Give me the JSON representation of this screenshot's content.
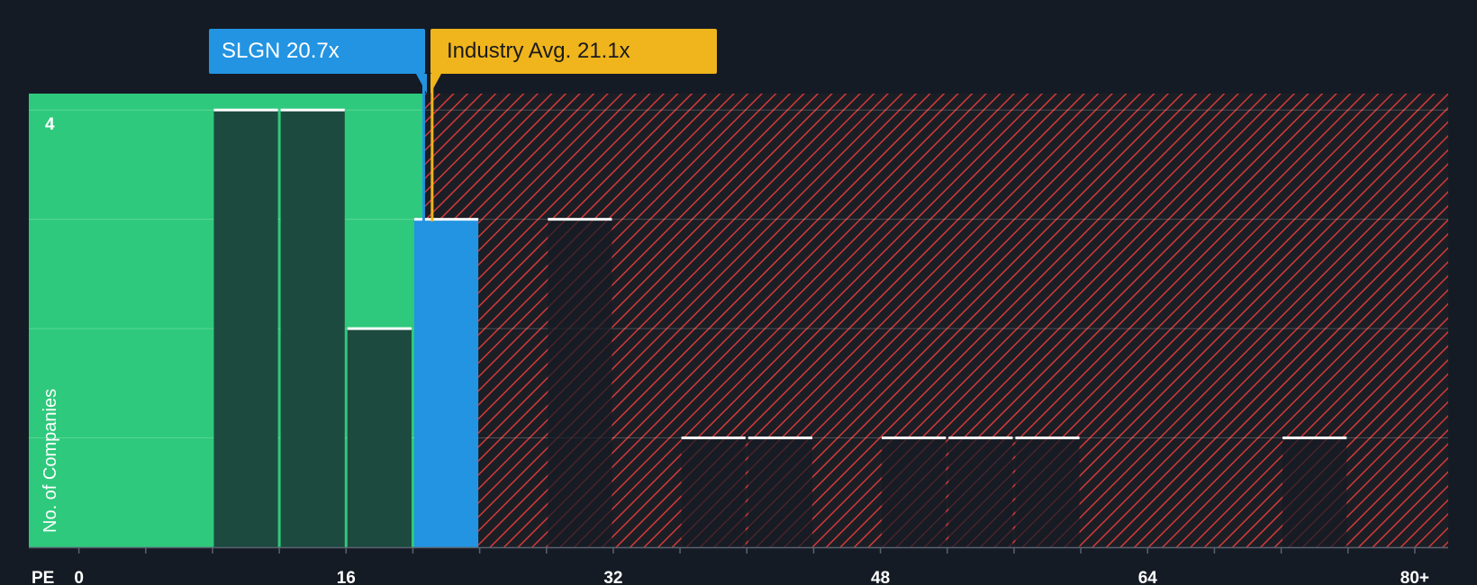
{
  "chart_data": {
    "type": "bar",
    "title": "",
    "xlabel": "PE",
    "ylabel": "No. of Companies",
    "x_axis_prefix": "PE",
    "x_ticks": [
      {
        "value": 0,
        "label": "0"
      },
      {
        "value": 16,
        "label": "16"
      },
      {
        "value": 32,
        "label": "32"
      },
      {
        "value": 48,
        "label": "48"
      },
      {
        "value": 64,
        "label": "64"
      },
      {
        "value": 80,
        "label": "80+"
      }
    ],
    "xlim": [
      -3,
      82
    ],
    "ylim": [
      0,
      4.15
    ],
    "y_ticks": [
      {
        "value": 4,
        "label": "4"
      }
    ],
    "y_gridlines": [
      1,
      2,
      3,
      4
    ],
    "bars": [
      {
        "start": 8,
        "end": 12,
        "value": 4,
        "highlight": false
      },
      {
        "start": 12,
        "end": 16,
        "value": 4,
        "highlight": false
      },
      {
        "start": 16,
        "end": 20,
        "value": 2,
        "highlight": false
      },
      {
        "start": 20,
        "end": 24,
        "value": 3,
        "highlight": true
      },
      {
        "start": 28,
        "end": 32,
        "value": 3,
        "highlight": false
      },
      {
        "start": 36,
        "end": 40,
        "value": 1,
        "highlight": false
      },
      {
        "start": 40,
        "end": 44,
        "value": 1,
        "highlight": false
      },
      {
        "start": 48,
        "end": 52,
        "value": 1,
        "highlight": false
      },
      {
        "start": 52,
        "end": 56,
        "value": 1,
        "highlight": false
      },
      {
        "start": 56,
        "end": 60,
        "value": 1,
        "highlight": false
      },
      {
        "start": 72,
        "end": 76,
        "value": 1,
        "highlight": false
      }
    ],
    "company": {
      "name": "SLGN",
      "pe": 20.7,
      "label": "SLGN 20.7x",
      "color": "#2394e2"
    },
    "industry": {
      "pe": 21.1,
      "label": "Industry Avg. 21.1x",
      "color": "#f0b41c"
    },
    "colors": {
      "background": "#151b24",
      "undervalued_region": "#2ec97c",
      "overvalued_hatch": "#d33a3a",
      "bar_dark": "#1d4a3f",
      "bar_highlight": "#2394e2"
    }
  }
}
